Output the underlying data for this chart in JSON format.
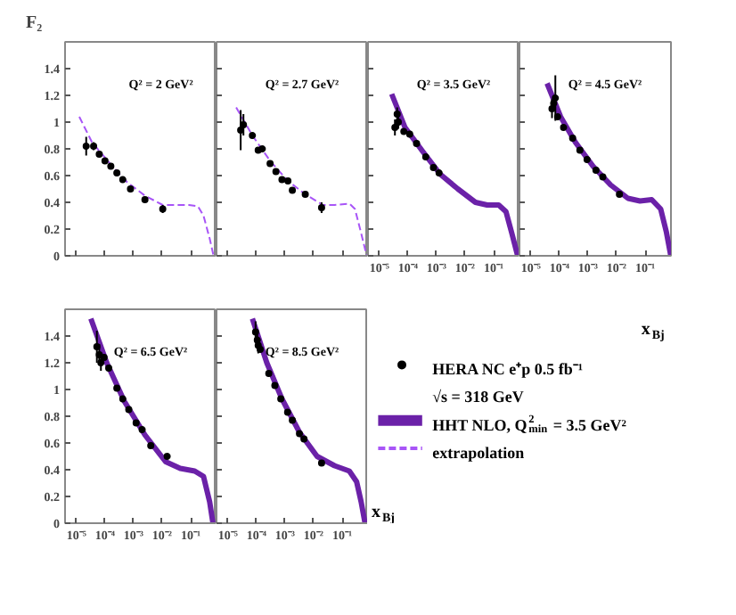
{
  "chart_data": [
    {
      "type": "scatter",
      "ylabel": "F₂",
      "annotations": [
        "Q² = 2 GeV²"
      ],
      "log": "x",
      "tick_labels": "y",
      "xlim": [
        4e-06,
        0.8
      ],
      "ylim": [
        0,
        1.6
      ],
      "xticks": [
        {
          "value": 1e-05,
          "label": null
        },
        {
          "value": 0.0001,
          "label": null
        },
        {
          "value": 0.001,
          "label": null
        },
        {
          "value": 0.01,
          "label": null
        },
        {
          "value": 0.1,
          "label": null
        }
      ],
      "yticks": [
        0,
        0.2,
        0.4,
        0.6,
        0.8,
        1,
        1.2,
        1.4
      ],
      "series": [
        {
          "marker": "circle",
          "color": "#000000",
          "x": [
            2.2e-05,
            4e-05,
            6.3e-05,
            0.0001,
            0.00016,
            0.00026,
            0.00042,
            0.00078,
            0.0025,
            0.0105
          ],
          "values": [
            0.82,
            0.82,
            0.76,
            0.71,
            0.67,
            0.62,
            0.57,
            0.5,
            0.42,
            0.35
          ],
          "errors": [
            0.07,
            0.03,
            null,
            null,
            null,
            null,
            null,
            null,
            null,
            0.03
          ]
        },
        {
          "type": "line",
          "name": "extrapolation",
          "color": "#a855f7",
          "line_style": "dashed",
          "x": [
            1.26e-05,
            3.5e-05,
            0.00015,
            0.0006,
            0.0025,
            0.0105,
            0.027,
            0.087,
            0.18,
            0.28,
            0.46,
            0.63
          ],
          "values": [
            1.04,
            0.85,
            0.69,
            0.55,
            0.45,
            0.38,
            0.38,
            0.38,
            0.37,
            0.3,
            0.13,
            0
          ]
        }
      ]
    },
    {
      "type": "scatter",
      "annotations": [
        "Q² = 2.7 GeV²"
      ],
      "log": "x",
      "tick_labels": false,
      "xlim": [
        4e-06,
        0.8
      ],
      "ylim": [
        0,
        1.6
      ],
      "xticks": [
        {
          "value": 1e-05,
          "label": null
        },
        {
          "value": 0.0001,
          "label": null
        },
        {
          "value": 0.001,
          "label": null
        },
        {
          "value": 0.01,
          "label": null
        },
        {
          "value": 0.1,
          "label": null
        }
      ],
      "yticks": [
        0,
        0.2,
        0.4,
        0.6,
        0.8,
        1,
        1.2,
        1.4
      ],
      "series": [
        {
          "marker": "circle",
          "color": "#000000",
          "x": [
            2.8e-05,
            3.5e-05,
            7.2e-05,
            0.000115,
            0.00016,
            0.0003,
            0.00048,
            0.00078,
            0.00126,
            0.0018,
            0.0051,
            0.019
          ],
          "values": [
            0.94,
            0.98,
            0.9,
            0.79,
            0.8,
            0.69,
            0.63,
            0.57,
            0.56,
            0.49,
            0.46,
            0.36
          ],
          "errors": [
            0.15,
            0.08,
            null,
            null,
            null,
            null,
            null,
            null,
            null,
            null,
            null,
            0.04
          ]
        },
        {
          "type": "line",
          "color": "#a855f7",
          "line_style": "dashed",
          "x": [
            1.95e-05,
            7.2e-05,
            0.0003,
            0.00126,
            0.0051,
            0.021,
            0.054,
            0.18,
            0.28,
            0.46,
            0.72
          ],
          "values": [
            1.11,
            0.9,
            0.71,
            0.56,
            0.46,
            0.38,
            0.38,
            0.39,
            0.35,
            0.17,
            0
          ]
        }
      ]
    },
    {
      "type": "scatter",
      "annotations": [
        "Q² = 3.5 GeV²"
      ],
      "log": "x",
      "tick_labels": "x",
      "xlim": [
        4e-06,
        0.8
      ],
      "ylim": [
        0,
        1.6
      ],
      "xticks": [
        {
          "value": 1e-05,
          "label": "10⁻⁵"
        },
        {
          "value": 0.0001,
          "label": "10⁻⁴"
        },
        {
          "value": 0.001,
          "label": "10⁻³"
        },
        {
          "value": 0.01,
          "label": "10⁻²"
        },
        {
          "value": 0.1,
          "label": "10⁻¹"
        }
      ],
      "yticks": [
        0,
        0.2,
        0.4,
        0.6,
        0.8,
        1,
        1.2,
        1.4
      ],
      "series": [
        {
          "marker": "circle",
          "color": "#000000",
          "x": [
            3.5e-05,
            4.2e-05,
            4.6e-05,
            7.2e-05,
            0.000115,
            0.0002,
            0.00042,
            0.00078,
            0.00123
          ],
          "values": [
            0.96,
            1.06,
            1.0,
            0.93,
            0.91,
            0.84,
            0.74,
            0.66,
            0.62
          ],
          "errors": [
            0.06,
            0.05,
            0.05,
            null,
            null,
            null,
            null,
            null,
            null
          ]
        },
        {
          "type": "line",
          "color": "#6b21a8",
          "line_style": "solid",
          "x": [
            2.7e-05,
            7.9e-05,
            0.00033,
            0.00135,
            0.0056,
            0.023,
            0.059,
            0.15,
            0.27,
            0.43,
            0.69
          ],
          "values": [
            1.21,
            0.96,
            0.78,
            0.61,
            0.5,
            0.4,
            0.38,
            0.38,
            0.33,
            0.17,
            0
          ]
        }
      ]
    },
    {
      "type": "scatter",
      "xlabel": "x$_{Bj}$",
      "annotations": [
        "Q² = 4.5 GeV²"
      ],
      "log": "x",
      "tick_labels": "x",
      "xlim": [
        4e-06,
        0.8
      ],
      "ylim": [
        0,
        1.6
      ],
      "xticks": [
        {
          "value": 1e-05,
          "label": "10⁻⁵"
        },
        {
          "value": 0.0001,
          "label": "10⁻⁴"
        },
        {
          "value": 0.001,
          "label": "10⁻³"
        },
        {
          "value": 0.01,
          "label": "10⁻²"
        },
        {
          "value": 0.1,
          "label": "10⁻¹"
        }
      ],
      "yticks": [
        0,
        0.2,
        0.4,
        0.6,
        0.8,
        1,
        1.2,
        1.4
      ],
      "series": [
        {
          "marker": "circle",
          "color": "#000000",
          "x": [
            5.5e-05,
            6.3e-05,
            7.2e-05,
            8.7e-05,
            0.00014,
            0.00029,
            0.00052,
            0.00093,
            0.0019,
            0.0033,
            0.0126
          ],
          "values": [
            1.1,
            1.14,
            1.18,
            1.04,
            0.96,
            0.88,
            0.79,
            0.72,
            0.64,
            0.59,
            0.46
          ],
          "errors": [
            0.07,
            0.05,
            0.17,
            null,
            null,
            null,
            null,
            null,
            null,
            null,
            null
          ]
        },
        {
          "type": "line",
          "color": "#6b21a8",
          "line_style": "solid",
          "x": [
            3.7e-05,
            0.00011,
            0.00036,
            0.0015,
            0.0062,
            0.025,
            0.066,
            0.17,
            0.35,
            0.55,
            0.79
          ],
          "values": [
            1.29,
            1.04,
            0.85,
            0.67,
            0.53,
            0.43,
            0.41,
            0.42,
            0.35,
            0.18,
            0
          ]
        }
      ]
    },
    {
      "type": "scatter",
      "annotations": [
        "Q² = 6.5 GeV²"
      ],
      "log": "x",
      "xlim": [
        4e-06,
        0.8
      ],
      "ylim": [
        0,
        1.6
      ],
      "xticks": [
        {
          "value": 1e-05,
          "label": "10⁻⁵"
        },
        {
          "value": 0.0001,
          "label": "10⁻⁴"
        },
        {
          "value": 0.001,
          "label": "10⁻³"
        },
        {
          "value": 0.01,
          "label": "10⁻²"
        },
        {
          "value": 0.1,
          "label": "10⁻¹"
        }
      ],
      "yticks": [
        0,
        0.2,
        0.4,
        0.6,
        0.8,
        1,
        1.2,
        1.4
      ],
      "series": [
        {
          "marker": "circle",
          "color": "#000000",
          "x": [
            5.2e-05,
            6.3e-05,
            7.2e-05,
            9.3e-05,
            0.000135,
            0.00026,
            0.00042,
            0.00068,
            0.00123,
            0.002,
            0.004,
            0.015
          ],
          "values": [
            1.32,
            1.26,
            1.2,
            1.24,
            1.16,
            1.01,
            0.93,
            0.85,
            0.75,
            0.7,
            0.58,
            0.5
          ],
          "errors": [
            0.12,
            0.08,
            0.06,
            null,
            null,
            null,
            null,
            null,
            null,
            null,
            null,
            null
          ]
        },
        {
          "type": "line",
          "color": "#6b21a8",
          "line_style": "solid",
          "x": [
            3.2e-05,
            0.000115,
            0.00048,
            0.0025,
            0.0132,
            0.043,
            0.138,
            0.28,
            0.46,
            0.6
          ],
          "values": [
            1.53,
            1.2,
            0.91,
            0.66,
            0.46,
            0.41,
            0.39,
            0.35,
            0.16,
            0
          ]
        }
      ]
    },
    {
      "type": "scatter",
      "xlabel": "x$_{Bj}$",
      "annotations": [
        "Q² = 8.5 GeV²",
        "√s = 318 GeV"
      ],
      "log": "x",
      "tick_labels": "x",
      "legend": "right",
      "xlim": [
        4e-06,
        0.8
      ],
      "ylim": [
        0,
        1.6
      ],
      "xticks": [
        {
          "value": 1e-05,
          "label": "10⁻⁵"
        },
        {
          "value": 0.0001,
          "label": "10⁻⁴"
        },
        {
          "value": 0.001,
          "label": "10⁻³"
        },
        {
          "value": 0.01,
          "label": "10⁻²"
        },
        {
          "value": 0.1,
          "label": "10⁻¹"
        }
      ],
      "yticks": [
        0,
        0.2,
        0.4,
        0.6,
        0.8,
        1,
        1.2,
        1.4
      ],
      "series": [
        {
          "marker": "circle",
          "name": "HERA NC e⁺p 0.5 fb⁻¹",
          "color": "#000000",
          "x": [
            9.3e-05,
            0.000107,
            0.000115,
            0.000135,
            0.00027,
            0.00044,
            0.00071,
            0.00123,
            0.0018,
            0.0032,
            0.0046,
            0.019
          ],
          "values": [
            1.43,
            1.37,
            1.33,
            1.3,
            1.12,
            1.03,
            0.93,
            0.83,
            0.77,
            0.67,
            0.63,
            0.45
          ],
          "errors": [
            0.08,
            0.06,
            0.06,
            null,
            null,
            null,
            null,
            null,
            null,
            null,
            null,
            null
          ]
        },
        {
          "type": "line",
          "name": "HHT NLO, Q$^{2}$$_{min}$ = 3.5 GeV²",
          "color": "#6b21a8",
          "line_style": "solid",
          "x": [
            7.2e-05,
            0.00023,
            0.00078,
            0.0032,
            0.0132,
            0.054,
            0.178,
            0.32,
            0.46,
            0.63
          ],
          "values": [
            1.53,
            1.2,
            0.93,
            0.68,
            0.5,
            0.43,
            0.39,
            0.31,
            0.16,
            0
          ]
        }
      ]
    }
  ]
}
